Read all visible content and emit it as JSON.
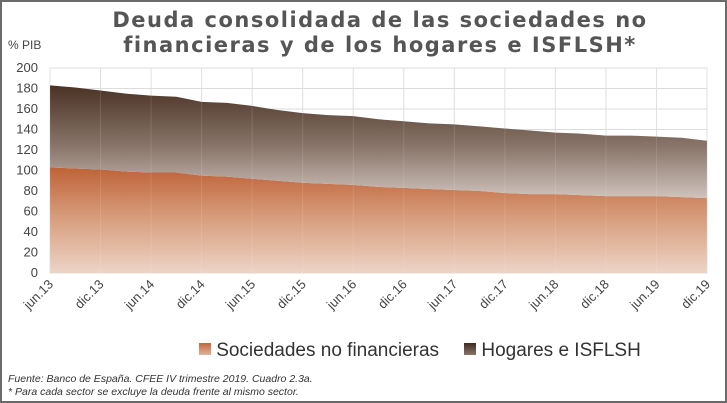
{
  "chart_data": {
    "type": "area",
    "stacked": true,
    "title": "Deuda consolidada de las sociedades no financieras y de los hogares e ISFLSH*",
    "ylabel": "% PIB",
    "ylim": [
      0,
      200
    ],
    "yticks": [
      0,
      20,
      40,
      60,
      80,
      100,
      120,
      140,
      160,
      180,
      200
    ],
    "x_tick_labels": [
      "jun.13",
      "dic.13",
      "jun.14",
      "dic.14",
      "jun.15",
      "dic.15",
      "jun.16",
      "dic.16",
      "jun.17",
      "dic.17",
      "jun.18",
      "dic.18",
      "jun.19",
      "dic.19"
    ],
    "grid": true,
    "legend_position": "bottom",
    "series": [
      {
        "name": "Sociedades no financieras",
        "color": "#c0653c",
        "values": [
          103,
          102,
          101,
          99,
          98,
          98,
          95,
          94,
          92,
          90,
          88,
          87,
          86,
          84,
          83,
          82,
          81,
          80,
          78,
          77,
          77,
          76,
          75,
          75,
          75,
          74,
          73
        ]
      },
      {
        "name": "Hogares e ISFLSH",
        "color": "#4e3a2f",
        "values": [
          80,
          79,
          77,
          76,
          75,
          74,
          72,
          72,
          71,
          69,
          68,
          67,
          67,
          66,
          65,
          64,
          64,
          63,
          63,
          62,
          60,
          60,
          59,
          59,
          58,
          58,
          56
        ]
      }
    ],
    "source": "Fuente: Banco de España. CFEE IV trimestre 2019. Cuadro 2.3a.",
    "note": "* Para cada sector se excluye la deuda frente al mismo sector."
  }
}
